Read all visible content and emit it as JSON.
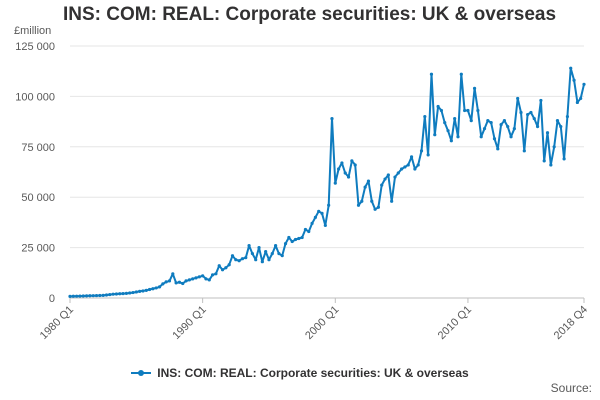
{
  "chart_data": {
    "type": "line",
    "title": "INS: COM: REAL: Corporate securities: UK & overseas",
    "ylabel": "£million",
    "ylim": [
      0,
      125000
    ],
    "yticks": [
      0,
      25000,
      50000,
      75000,
      100000,
      125000
    ],
    "ytick_labels": [
      "0",
      "25 000",
      "50 000",
      "75 000",
      "100 000",
      "125 000"
    ],
    "xtick_labels": [
      {
        "label": "1980 Q1",
        "index": 0
      },
      {
        "label": "1990 Q1",
        "index": 40
      },
      {
        "label": "2000 Q1",
        "index": 80
      },
      {
        "label": "2010 Q1",
        "index": 120
      },
      {
        "label": "2018 Q4",
        "index": 155
      }
    ],
    "grid": true,
    "legend": "bottom-center",
    "series": [
      {
        "name": "INS: COM: REAL: Corporate securities: UK & overseas",
        "color": "#0f7cbf",
        "values": [
          800,
          850,
          900,
          950,
          1000,
          1050,
          1100,
          1150,
          1200,
          1250,
          1300,
          1500,
          1700,
          1900,
          2000,
          2100,
          2200,
          2300,
          2500,
          2700,
          3000,
          3300,
          3500,
          3800,
          4200,
          4600,
          5000,
          5500,
          7000,
          8000,
          8500,
          12000,
          7500,
          7800,
          7200,
          8500,
          9000,
          9500,
          10000,
          10500,
          11000,
          9500,
          9000,
          11500,
          12000,
          16000,
          14000,
          15000,
          16500,
          21000,
          19000,
          18500,
          19500,
          20000,
          26000,
          22000,
          19000,
          25000,
          18000,
          23000,
          19000,
          22000,
          26000,
          22000,
          21000,
          27000,
          30000,
          28000,
          29000,
          29500,
          30000,
          34000,
          33000,
          37000,
          40000,
          43000,
          42000,
          36000,
          46000,
          89000,
          57000,
          64000,
          67000,
          62000,
          60000,
          68000,
          66000,
          46000,
          48000,
          55000,
          58000,
          48000,
          44000,
          45000,
          56000,
          59000,
          61000,
          48000,
          60000,
          62000,
          64000,
          65000,
          66000,
          70000,
          64000,
          66000,
          73000,
          90000,
          71000,
          111000,
          81000,
          95000,
          93000,
          87000,
          83000,
          78000,
          89000,
          80000,
          111000,
          93000,
          93000,
          88000,
          104000,
          93000,
          80000,
          84000,
          88000,
          87000,
          79000,
          74000,
          86000,
          88000,
          85000,
          80000,
          84000,
          99000,
          92000,
          73000,
          91000,
          92000,
          89000,
          85000,
          98000,
          68000,
          82000,
          66000,
          75000,
          88000,
          85000,
          69000,
          90000,
          114000,
          108000,
          97000,
          99000,
          106000
        ]
      }
    ]
  },
  "legend": {
    "label": "INS: COM: REAL: Corporate securities: UK & overseas"
  },
  "footer": {
    "source": "Source:"
  }
}
